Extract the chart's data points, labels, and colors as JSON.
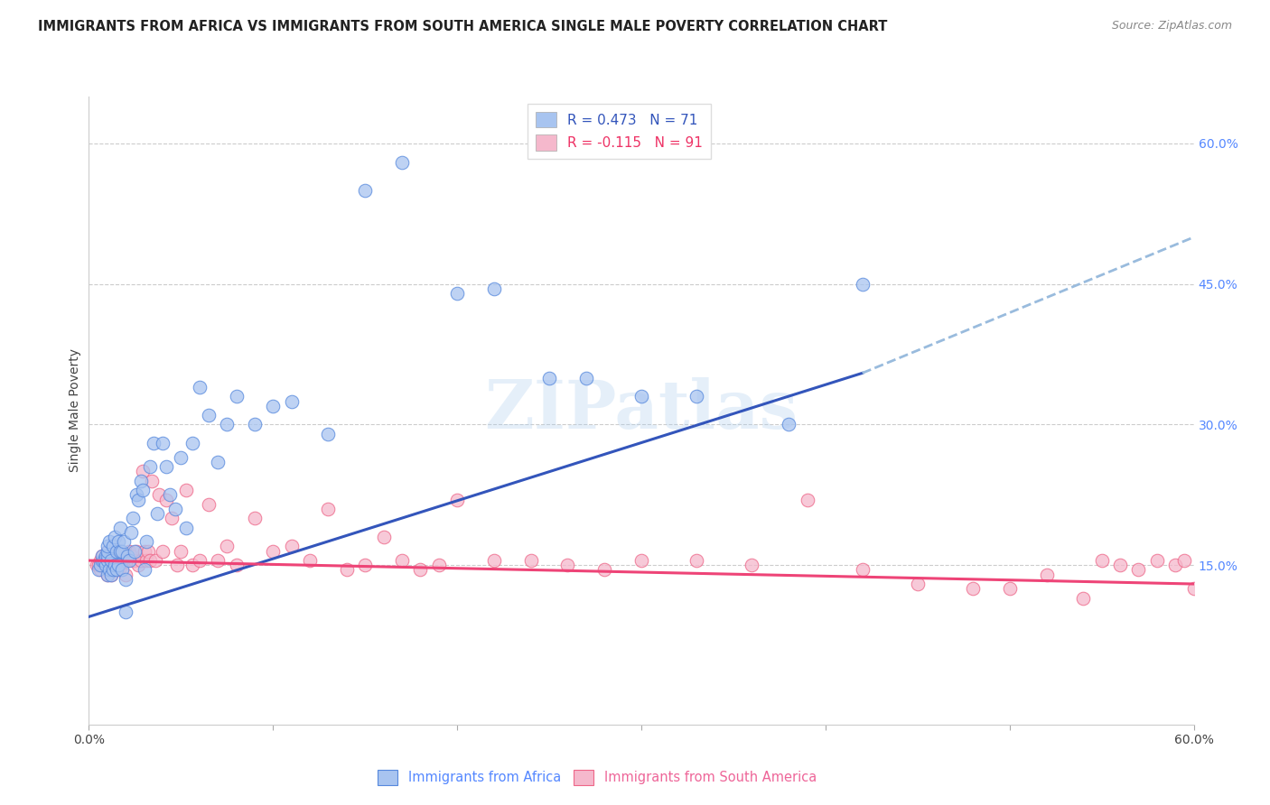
{
  "title": "IMMIGRANTS FROM AFRICA VS IMMIGRANTS FROM SOUTH AMERICA SINGLE MALE POVERTY CORRELATION CHART",
  "source": "Source: ZipAtlas.com",
  "ylabel": "Single Male Poverty",
  "xlim": [
    0.0,
    0.6
  ],
  "ylim": [
    -0.02,
    0.65
  ],
  "yticks_right": [
    0.15,
    0.3,
    0.45,
    0.6
  ],
  "ytick_right_labels": [
    "15.0%",
    "30.0%",
    "45.0%",
    "60.0%"
  ],
  "legend_blue_label": "R = 0.473   N = 71",
  "legend_pink_label": "R = -0.115   N = 91",
  "legend_blue_color": "#a8c4f0",
  "legend_pink_color": "#f5b8cc",
  "scatter_blue_color": "#a8c4f0",
  "scatter_pink_color": "#f5b8cc",
  "scatter_blue_edge": "#5588dd",
  "scatter_pink_edge": "#ee6688",
  "line_blue_color": "#3355bb",
  "line_pink_color": "#ee4477",
  "line_dashed_color": "#99bbdd",
  "watermark": "ZIPatlas",
  "africa_x": [
    0.005,
    0.006,
    0.007,
    0.007,
    0.008,
    0.009,
    0.009,
    0.01,
    0.01,
    0.01,
    0.01,
    0.01,
    0.011,
    0.011,
    0.012,
    0.012,
    0.013,
    0.013,
    0.014,
    0.014,
    0.015,
    0.015,
    0.016,
    0.016,
    0.017,
    0.017,
    0.018,
    0.018,
    0.019,
    0.02,
    0.02,
    0.021,
    0.022,
    0.023,
    0.024,
    0.025,
    0.026,
    0.027,
    0.028,
    0.029,
    0.03,
    0.031,
    0.033,
    0.035,
    0.037,
    0.04,
    0.042,
    0.044,
    0.047,
    0.05,
    0.053,
    0.056,
    0.06,
    0.065,
    0.07,
    0.075,
    0.08,
    0.09,
    0.1,
    0.11,
    0.13,
    0.15,
    0.17,
    0.2,
    0.22,
    0.25,
    0.27,
    0.3,
    0.33,
    0.38,
    0.42
  ],
  "africa_y": [
    0.145,
    0.15,
    0.155,
    0.16,
    0.155,
    0.15,
    0.16,
    0.14,
    0.155,
    0.16,
    0.165,
    0.17,
    0.145,
    0.175,
    0.14,
    0.155,
    0.145,
    0.17,
    0.15,
    0.18,
    0.145,
    0.165,
    0.15,
    0.175,
    0.165,
    0.19,
    0.145,
    0.165,
    0.175,
    0.1,
    0.135,
    0.16,
    0.155,
    0.185,
    0.2,
    0.165,
    0.225,
    0.22,
    0.24,
    0.23,
    0.145,
    0.175,
    0.255,
    0.28,
    0.205,
    0.28,
    0.255,
    0.225,
    0.21,
    0.265,
    0.19,
    0.28,
    0.34,
    0.31,
    0.26,
    0.3,
    0.33,
    0.3,
    0.32,
    0.325,
    0.29,
    0.55,
    0.58,
    0.44,
    0.445,
    0.35,
    0.35,
    0.33,
    0.33,
    0.3,
    0.45
  ],
  "sa_x": [
    0.004,
    0.005,
    0.006,
    0.006,
    0.007,
    0.007,
    0.008,
    0.008,
    0.009,
    0.009,
    0.01,
    0.01,
    0.01,
    0.01,
    0.011,
    0.011,
    0.012,
    0.012,
    0.013,
    0.013,
    0.014,
    0.014,
    0.015,
    0.015,
    0.016,
    0.016,
    0.017,
    0.018,
    0.019,
    0.02,
    0.021,
    0.022,
    0.023,
    0.024,
    0.025,
    0.026,
    0.027,
    0.028,
    0.029,
    0.03,
    0.031,
    0.032,
    0.033,
    0.034,
    0.036,
    0.038,
    0.04,
    0.042,
    0.045,
    0.048,
    0.05,
    0.053,
    0.056,
    0.06,
    0.065,
    0.07,
    0.075,
    0.08,
    0.09,
    0.1,
    0.11,
    0.12,
    0.13,
    0.14,
    0.15,
    0.16,
    0.17,
    0.18,
    0.19,
    0.2,
    0.22,
    0.24,
    0.26,
    0.28,
    0.3,
    0.33,
    0.36,
    0.39,
    0.42,
    0.45,
    0.48,
    0.5,
    0.52,
    0.54,
    0.55,
    0.56,
    0.57,
    0.58,
    0.59,
    0.595,
    0.6
  ],
  "sa_y": [
    0.15,
    0.15,
    0.145,
    0.155,
    0.15,
    0.16,
    0.15,
    0.155,
    0.15,
    0.16,
    0.14,
    0.155,
    0.16,
    0.165,
    0.145,
    0.155,
    0.14,
    0.16,
    0.15,
    0.155,
    0.145,
    0.165,
    0.145,
    0.155,
    0.15,
    0.165,
    0.148,
    0.155,
    0.155,
    0.14,
    0.155,
    0.165,
    0.16,
    0.155,
    0.155,
    0.165,
    0.15,
    0.155,
    0.25,
    0.165,
    0.155,
    0.165,
    0.155,
    0.24,
    0.155,
    0.225,
    0.165,
    0.22,
    0.2,
    0.15,
    0.165,
    0.23,
    0.15,
    0.155,
    0.215,
    0.155,
    0.17,
    0.15,
    0.2,
    0.165,
    0.17,
    0.155,
    0.21,
    0.145,
    0.15,
    0.18,
    0.155,
    0.145,
    0.15,
    0.22,
    0.155,
    0.155,
    0.15,
    0.145,
    0.155,
    0.155,
    0.15,
    0.22,
    0.145,
    0.13,
    0.125,
    0.125,
    0.14,
    0.115,
    0.155,
    0.15,
    0.145,
    0.155,
    0.15,
    0.155,
    0.125
  ],
  "background_color": "#ffffff",
  "grid_color": "#cccccc",
  "title_fontsize": 10.5,
  "axis_label_fontsize": 10,
  "tick_fontsize": 10,
  "blue_line_x_solid_end": 0.42,
  "blue_line_x_start": 0.0,
  "blue_line_y_start": 0.095,
  "blue_line_y_solid_end": 0.355,
  "blue_line_y_dashed_end": 0.5,
  "pink_line_x_start": 0.0,
  "pink_line_y_start": 0.155,
  "pink_line_y_end": 0.13
}
